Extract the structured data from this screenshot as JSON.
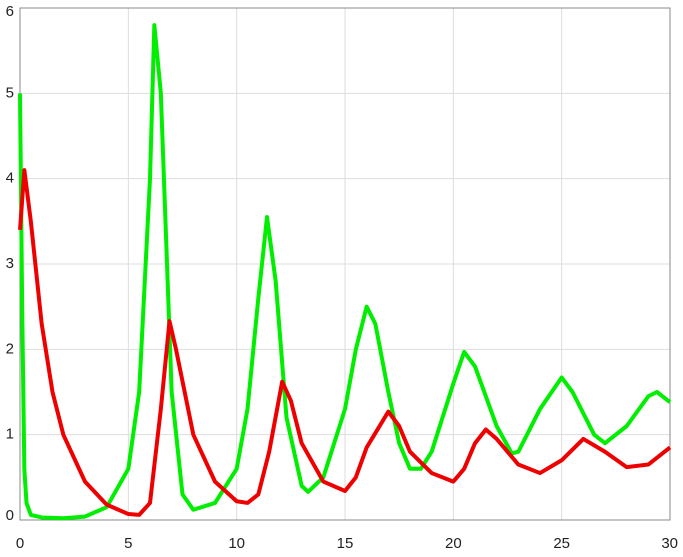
{
  "chart_data": {
    "type": "line",
    "xlim": [
      0,
      30
    ],
    "xticks": [
      0,
      5,
      10,
      15,
      20,
      25,
      30
    ],
    "ylim": [
      0,
      6
    ],
    "yticks": [
      0,
      1,
      2,
      3,
      4,
      5,
      6
    ],
    "grid": true,
    "series": [
      {
        "color": "#00ee00",
        "x": [
          0,
          0.1,
          0.2,
          0.3,
          0.5,
          1,
          2,
          3,
          4,
          5,
          5.5,
          6,
          6.2,
          6.5,
          7,
          7.5,
          8,
          9,
          10,
          10.5,
          11,
          11.4,
          11.8,
          12.3,
          13,
          13.3,
          14,
          15,
          15.5,
          16,
          16.4,
          17,
          17.5,
          18,
          18.5,
          19,
          20,
          20.5,
          21,
          22,
          22.7,
          23,
          24,
          25,
          25.5,
          26.5,
          27,
          28,
          29,
          29.4,
          30
        ],
        "values": [
          5,
          2.5,
          0.6,
          0.2,
          0.06,
          0.03,
          0.02,
          0.04,
          0.15,
          0.6,
          1.5,
          4,
          5.8,
          5,
          1.5,
          0.3,
          0.12,
          0.2,
          0.6,
          1.3,
          2.6,
          3.55,
          2.8,
          1.2,
          0.4,
          0.33,
          0.5,
          1.3,
          2,
          2.5,
          2.3,
          1.5,
          0.9,
          0.6,
          0.6,
          0.8,
          1.6,
          1.97,
          1.8,
          1.1,
          0.78,
          0.8,
          1.3,
          1.67,
          1.5,
          1,
          0.9,
          1.1,
          1.45,
          1.5,
          1.38
        ]
      },
      {
        "color": "#ee0000",
        "x": [
          0,
          0.2,
          0.5,
          1,
          1.5,
          2,
          3,
          4,
          5,
          5.5,
          6,
          6.5,
          6.9,
          7.2,
          8,
          9,
          10,
          10.5,
          11,
          11.5,
          12.1,
          12.5,
          13,
          14,
          15,
          15.5,
          16,
          17,
          17.5,
          18,
          19,
          20,
          20.5,
          21,
          21.5,
          22,
          23,
          24,
          25,
          26,
          27,
          28,
          29,
          30
        ],
        "values": [
          3.4,
          4.1,
          3.5,
          2.3,
          1.5,
          1,
          0.45,
          0.18,
          0.07,
          0.06,
          0.2,
          1.3,
          2.33,
          2,
          1,
          0.45,
          0.22,
          0.2,
          0.3,
          0.8,
          1.62,
          1.4,
          0.9,
          0.45,
          0.34,
          0.5,
          0.85,
          1.27,
          1.1,
          0.8,
          0.55,
          0.45,
          0.6,
          0.9,
          1.06,
          0.95,
          0.65,
          0.55,
          0.7,
          0.95,
          0.8,
          0.62,
          0.65,
          0.85
        ]
      }
    ]
  }
}
